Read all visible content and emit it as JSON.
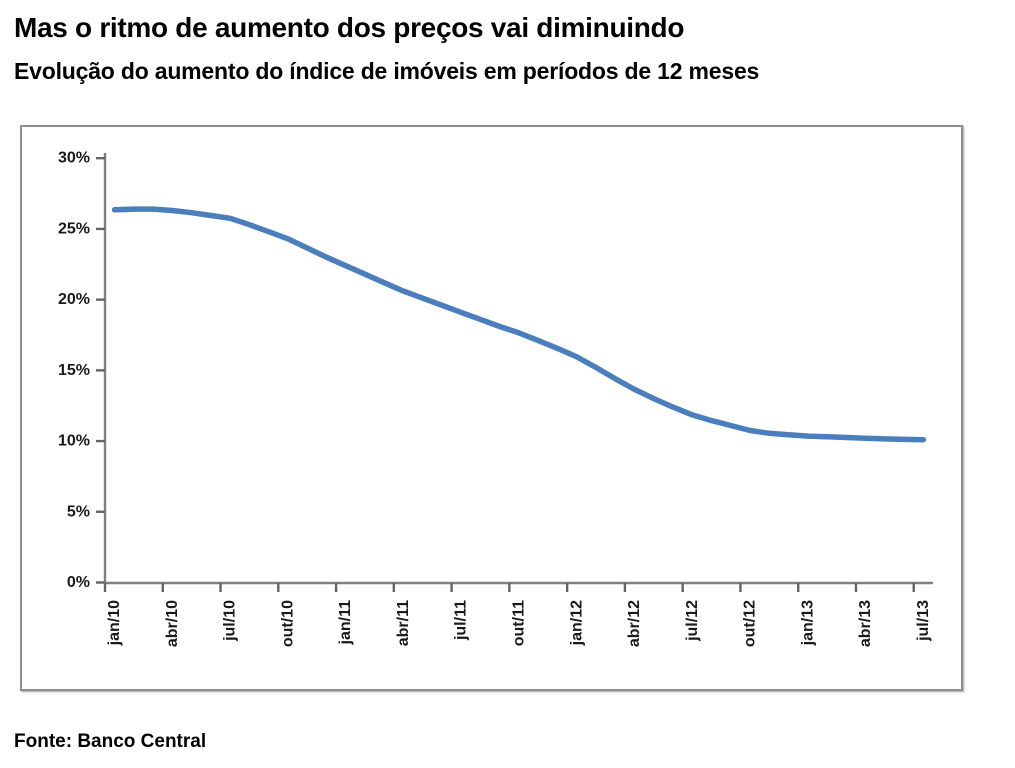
{
  "chart_data": {
    "type": "line",
    "title": "Mas o ritmo de aumento dos preços vai diminuindo",
    "subtitle": "Evolução do aumento do índice de imóveis em períodos de 12 meses",
    "source": "Fonte: Banco Central",
    "x_unit": "month",
    "x_start": "jan/10",
    "x_end": "jul/13",
    "x_tick_labels": [
      "jan/10",
      "abr/10",
      "jul/10",
      "out/10",
      "jan/11",
      "abr/11",
      "jul/11",
      "out/11",
      "jan/12",
      "abr/12",
      "jul/12",
      "out/12",
      "jan/13",
      "abr/13",
      "jul/13"
    ],
    "x_label_every_n_months": 3,
    "y_tick_labels": [
      "0%",
      "5%",
      "10%",
      "15%",
      "20%",
      "25%",
      "30%"
    ],
    "ylim": [
      0,
      30
    ],
    "grid": false,
    "legend_position": "none",
    "values_pct": [
      26.35,
      26.4,
      26.4,
      26.3,
      26.15,
      25.95,
      25.75,
      25.3,
      24.8,
      24.3,
      23.65,
      23.0,
      22.4,
      21.8,
      21.2,
      20.6,
      20.1,
      19.6,
      19.1,
      18.6,
      18.1,
      17.65,
      17.1,
      16.55,
      15.95,
      15.2,
      14.4,
      13.65,
      13.0,
      12.4,
      11.85,
      11.45,
      11.1,
      10.75,
      10.55,
      10.45,
      10.35,
      10.3,
      10.25,
      10.2,
      10.15,
      10.12,
      10.1
    ],
    "colors": {
      "line": "#4a7ebc",
      "axis": "#808080",
      "tick": "#646464",
      "text": "#1a1a1a",
      "frame_border": "#8e8e8e"
    }
  }
}
